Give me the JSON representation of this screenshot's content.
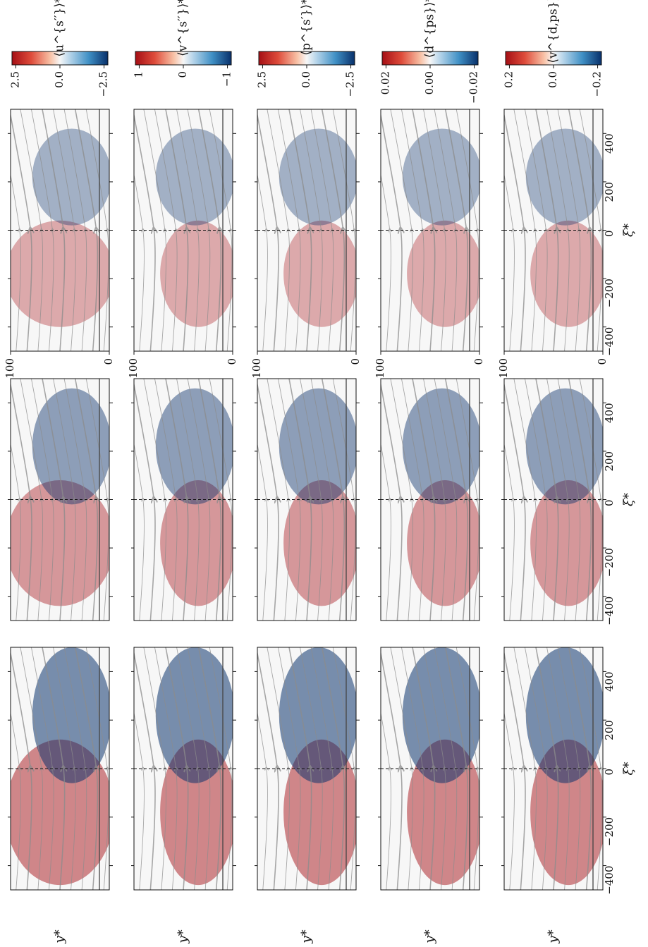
{
  "figure": {
    "orientation": "rotated-90-ccw",
    "panel_columns": 3,
    "panel_rows": 5,
    "colormap": "diverging red-white-blue",
    "colors": {
      "positive": "#a50f15",
      "zero": "#f7f7f7",
      "negative": "#08306b",
      "streamline": "#8c8c8c",
      "wall_line": "#444444"
    }
  },
  "chart_data": {
    "type": "heatmap",
    "xlabel": "ξ*",
    "ylabel": "y*",
    "xlim": [
      -500,
      500
    ],
    "ylim": [
      0,
      100
    ],
    "x_ticks": [
      -400,
      -200,
      0,
      200,
      400
    ],
    "x_tick_labels": [
      "−400",
      "−200",
      "0",
      "200",
      "400"
    ],
    "y_ticks": [
      0,
      100
    ],
    "y_tick_labels": [
      "0",
      "100"
    ],
    "horizontal_reference_y": 10,
    "vertical_reference_x": 0,
    "grid": false,
    "variables": [
      {
        "label": "⟨u^{s′′}⟩*",
        "cbar_ticks": [
          "2.5",
          "0.0",
          "−2.5"
        ],
        "vmax": 2.5,
        "vmin": -2.5
      },
      {
        "label": "⟨v^{s′′}⟩*",
        "cbar_ticks": [
          "1",
          "0",
          "−1"
        ],
        "vmax": 1,
        "vmin": -1
      },
      {
        "label": "⟨p^{s′}⟩*",
        "cbar_ticks": [
          "2.5",
          "0.0",
          "−2.5"
        ],
        "vmax": 2.5,
        "vmin": -2.5
      },
      {
        "label": "⟨d^{ps}⟩*",
        "cbar_ticks": [
          "0.02",
          "0.00",
          "−0.02"
        ],
        "vmax": 0.02,
        "vmin": -0.02
      },
      {
        "label": "⟨v^{d,ps}⟩*",
        "cbar_ticks": [
          "0.2",
          "0.0",
          "−0.2"
        ],
        "vmax": 0.2,
        "vmin": -0.2
      }
    ]
  }
}
